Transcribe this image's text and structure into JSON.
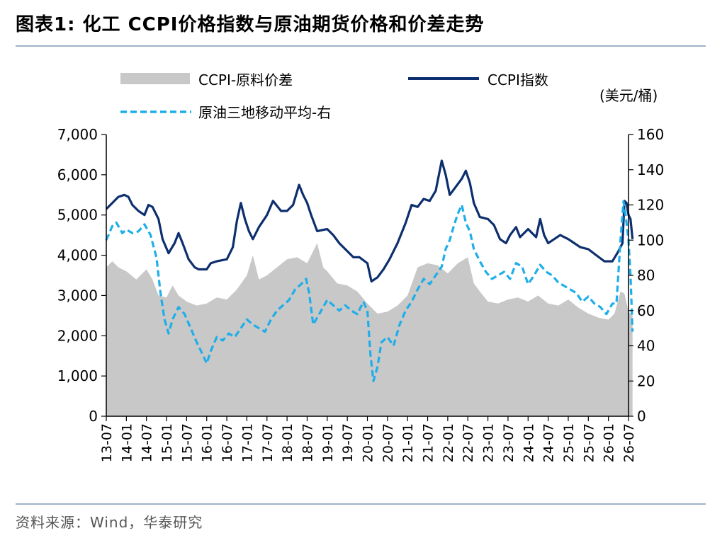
{
  "header": {
    "title": "图表1:   化工 CCPI价格指数与原油期货价格和价差走势"
  },
  "footer": {
    "source": "资料来源：Wind，华泰研究"
  },
  "colors": {
    "spread": "#c8c8c8",
    "ccpi": "#0d2f6e",
    "oil": "#1eaee9"
  },
  "chart_data": {
    "type": "line",
    "legend": {
      "spread": "CCPI-原料价差",
      "ccpi": "CCPI指数",
      "oil": "原油三地移动平均-右",
      "unit": "(美元/桶)"
    },
    "x_ticks": [
      "13-07",
      "14-01",
      "14-07",
      "15-01",
      "15-07",
      "16-01",
      "16-07",
      "17-01",
      "17-07",
      "18-01",
      "18-07",
      "19-01",
      "19-07",
      "20-01",
      "20-07",
      "21-01",
      "21-07",
      "22-01",
      "22-07",
      "23-01",
      "23-07",
      "24-01",
      "24-07",
      "25-01",
      "25-07",
      "26-01",
      "26-07"
    ],
    "y_left": {
      "ticks": [
        "0",
        "1,000",
        "2,000",
        "3,000",
        "4,000",
        "5,000",
        "6,000",
        "7,000"
      ],
      "min": 0,
      "max": 7000
    },
    "y_right": {
      "ticks": [
        "0",
        "20",
        "40",
        "60",
        "80",
        "100",
        "120",
        "140",
        "160"
      ],
      "min": 0,
      "max": 160
    },
    "series": [
      {
        "key": "spread",
        "name": "CCPI-原料价差",
        "kind": "area",
        "axis": "left",
        "points": [
          [
            0,
            3700
          ],
          [
            0.3,
            3850
          ],
          [
            0.6,
            3700
          ],
          [
            1,
            3600
          ],
          [
            1.5,
            3400
          ],
          [
            2,
            3650
          ],
          [
            2.3,
            3400
          ],
          [
            2.6,
            3000
          ],
          [
            3,
            2950
          ],
          [
            3.3,
            3250
          ],
          [
            3.6,
            3000
          ],
          [
            4,
            2850
          ],
          [
            4.5,
            2750
          ],
          [
            5,
            2800
          ],
          [
            5.5,
            2950
          ],
          [
            6,
            2900
          ],
          [
            6.5,
            3150
          ],
          [
            7,
            3500
          ],
          [
            7.3,
            4000
          ],
          [
            7.6,
            3400
          ],
          [
            8,
            3500
          ],
          [
            8.5,
            3700
          ],
          [
            9,
            3900
          ],
          [
            9.5,
            3950
          ],
          [
            10,
            3800
          ],
          [
            10.5,
            4300
          ],
          [
            10.8,
            3700
          ],
          [
            11,
            3600
          ],
          [
            11.5,
            3300
          ],
          [
            12,
            3250
          ],
          [
            12.5,
            3100
          ],
          [
            13,
            2800
          ],
          [
            13.5,
            2550
          ],
          [
            14,
            2600
          ],
          [
            14.5,
            2750
          ],
          [
            15,
            3000
          ],
          [
            15.5,
            3700
          ],
          [
            16,
            3800
          ],
          [
            16.5,
            3750
          ],
          [
            17,
            3550
          ],
          [
            17.5,
            3800
          ],
          [
            18,
            3950
          ],
          [
            18.3,
            3300
          ],
          [
            18.6,
            3100
          ],
          [
            19,
            2850
          ],
          [
            19.5,
            2800
          ],
          [
            20,
            2900
          ],
          [
            20.5,
            2950
          ],
          [
            21,
            2850
          ],
          [
            21.5,
            3000
          ],
          [
            22,
            2800
          ],
          [
            22.5,
            2750
          ],
          [
            23,
            2900
          ],
          [
            23.5,
            2700
          ],
          [
            24,
            2550
          ],
          [
            24.5,
            2450
          ],
          [
            25,
            2400
          ],
          [
            25.3,
            2550
          ],
          [
            25.6,
            3100
          ],
          [
            25.8,
            3050
          ],
          [
            26,
            2600
          ],
          [
            26.2,
            2500
          ]
        ]
      },
      {
        "key": "ccpi",
        "name": "CCPI指数",
        "kind": "line",
        "axis": "left",
        "points": [
          [
            0,
            5150
          ],
          [
            0.3,
            5300
          ],
          [
            0.6,
            5450
          ],
          [
            0.9,
            5500
          ],
          [
            1.1,
            5450
          ],
          [
            1.3,
            5250
          ],
          [
            1.6,
            5100
          ],
          [
            1.9,
            5000
          ],
          [
            2.1,
            5250
          ],
          [
            2.3,
            5200
          ],
          [
            2.6,
            4900
          ],
          [
            2.8,
            4400
          ],
          [
            3.1,
            4050
          ],
          [
            3.4,
            4300
          ],
          [
            3.6,
            4550
          ],
          [
            3.8,
            4300
          ],
          [
            4.1,
            3900
          ],
          [
            4.4,
            3700
          ],
          [
            4.6,
            3650
          ],
          [
            5,
            3650
          ],
          [
            5.2,
            3800
          ],
          [
            5.5,
            3850
          ],
          [
            6,
            3900
          ],
          [
            6.3,
            4200
          ],
          [
            6.5,
            4850
          ],
          [
            6.7,
            5300
          ],
          [
            6.9,
            4900
          ],
          [
            7.1,
            4600
          ],
          [
            7.3,
            4400
          ],
          [
            7.6,
            4700
          ],
          [
            8,
            5000
          ],
          [
            8.3,
            5350
          ],
          [
            8.7,
            5100
          ],
          [
            9,
            5100
          ],
          [
            9.3,
            5250
          ],
          [
            9.6,
            5750
          ],
          [
            9.8,
            5500
          ],
          [
            10,
            5300
          ],
          [
            10.2,
            5000
          ],
          [
            10.5,
            4600
          ],
          [
            11,
            4650
          ],
          [
            11.3,
            4500
          ],
          [
            11.6,
            4300
          ],
          [
            12,
            4100
          ],
          [
            12.3,
            3950
          ],
          [
            12.6,
            3950
          ],
          [
            13,
            3800
          ],
          [
            13.2,
            3350
          ],
          [
            13.5,
            3450
          ],
          [
            13.8,
            3650
          ],
          [
            14.1,
            3900
          ],
          [
            14.5,
            4300
          ],
          [
            14.9,
            4800
          ],
          [
            15.2,
            5250
          ],
          [
            15.5,
            5200
          ],
          [
            15.8,
            5400
          ],
          [
            16.1,
            5350
          ],
          [
            16.4,
            5600
          ],
          [
            16.7,
            6350
          ],
          [
            16.9,
            6000
          ],
          [
            17.1,
            5500
          ],
          [
            17.4,
            5700
          ],
          [
            17.7,
            5900
          ],
          [
            17.9,
            6100
          ],
          [
            18.1,
            5800
          ],
          [
            18.3,
            5300
          ],
          [
            18.6,
            4950
          ],
          [
            19,
            4900
          ],
          [
            19.3,
            4750
          ],
          [
            19.6,
            4400
          ],
          [
            19.9,
            4300
          ],
          [
            20.1,
            4500
          ],
          [
            20.4,
            4700
          ],
          [
            20.6,
            4450
          ],
          [
            21,
            4650
          ],
          [
            21.4,
            4450
          ],
          [
            21.6,
            4900
          ],
          [
            21.8,
            4500
          ],
          [
            22,
            4300
          ],
          [
            22.3,
            4400
          ],
          [
            22.6,
            4500
          ],
          [
            23,
            4400
          ],
          [
            23.3,
            4300
          ],
          [
            23.6,
            4200
          ],
          [
            24,
            4150
          ],
          [
            24.4,
            4000
          ],
          [
            24.8,
            3850
          ],
          [
            25.2,
            3850
          ],
          [
            25.5,
            4100
          ],
          [
            25.7,
            4300
          ],
          [
            25.8,
            5350
          ],
          [
            25.9,
            5300
          ],
          [
            26,
            5000
          ],
          [
            26.1,
            4900
          ],
          [
            26.2,
            4400
          ]
        ]
      },
      {
        "key": "oil",
        "name": "原油三地移动平均-右",
        "kind": "dashed",
        "axis": "right",
        "points": [
          [
            0,
            100
          ],
          [
            0.3,
            108
          ],
          [
            0.5,
            110
          ],
          [
            0.8,
            104
          ],
          [
            1,
            106
          ],
          [
            1.3,
            104
          ],
          [
            1.6,
            105
          ],
          [
            1.9,
            109
          ],
          [
            2.2,
            103
          ],
          [
            2.5,
            90
          ],
          [
            2.7,
            70
          ],
          [
            2.9,
            55
          ],
          [
            3.1,
            47
          ],
          [
            3.3,
            55
          ],
          [
            3.6,
            62
          ],
          [
            3.9,
            58
          ],
          [
            4.2,
            50
          ],
          [
            4.5,
            42
          ],
          [
            4.8,
            35
          ],
          [
            5,
            30
          ],
          [
            5.2,
            37
          ],
          [
            5.5,
            45
          ],
          [
            5.8,
            43
          ],
          [
            6.1,
            47
          ],
          [
            6.4,
            45
          ],
          [
            6.7,
            50
          ],
          [
            7,
            55
          ],
          [
            7.3,
            52
          ],
          [
            7.6,
            50
          ],
          [
            7.9,
            48
          ],
          [
            8.2,
            55
          ],
          [
            8.5,
            60
          ],
          [
            8.8,
            63
          ],
          [
            9.1,
            66
          ],
          [
            9.4,
            72
          ],
          [
            9.7,
            75
          ],
          [
            9.95,
            78
          ],
          [
            10.1,
            70
          ],
          [
            10.3,
            52
          ],
          [
            10.5,
            56
          ],
          [
            10.8,
            62
          ],
          [
            11,
            66
          ],
          [
            11.3,
            63
          ],
          [
            11.6,
            60
          ],
          [
            11.9,
            63
          ],
          [
            12.2,
            60
          ],
          [
            12.5,
            58
          ],
          [
            12.8,
            65
          ],
          [
            13,
            60
          ],
          [
            13.15,
            35
          ],
          [
            13.3,
            20
          ],
          [
            13.5,
            28
          ],
          [
            13.7,
            42
          ],
          [
            14,
            45
          ],
          [
            14.3,
            40
          ],
          [
            14.6,
            52
          ],
          [
            14.9,
            60
          ],
          [
            15.2,
            65
          ],
          [
            15.5,
            72
          ],
          [
            15.8,
            78
          ],
          [
            16.1,
            75
          ],
          [
            16.4,
            80
          ],
          [
            16.7,
            85
          ],
          [
            16.9,
            95
          ],
          [
            17.1,
            100
          ],
          [
            17.3,
            108
          ],
          [
            17.5,
            115
          ],
          [
            17.7,
            120
          ],
          [
            17.9,
            110
          ],
          [
            18.1,
            105
          ],
          [
            18.3,
            95
          ],
          [
            18.6,
            88
          ],
          [
            18.9,
            82
          ],
          [
            19.2,
            78
          ],
          [
            19.5,
            80
          ],
          [
            19.8,
            82
          ],
          [
            20.1,
            78
          ],
          [
            20.4,
            87
          ],
          [
            20.7,
            85
          ],
          [
            21,
            75
          ],
          [
            21.3,
            80
          ],
          [
            21.6,
            86
          ],
          [
            21.9,
            82
          ],
          [
            22.2,
            80
          ],
          [
            22.5,
            76
          ],
          [
            22.8,
            74
          ],
          [
            23.1,
            72
          ],
          [
            23.4,
            70
          ],
          [
            23.7,
            65
          ],
          [
            24,
            68
          ],
          [
            24.3,
            64
          ],
          [
            24.6,
            62
          ],
          [
            24.9,
            58
          ],
          [
            25.2,
            64
          ],
          [
            25.4,
            64
          ],
          [
            25.6,
            100
          ],
          [
            25.75,
            122
          ],
          [
            25.85,
            115
          ],
          [
            26,
            100
          ],
          [
            26.1,
            80
          ],
          [
            26.2,
            48
          ]
        ]
      }
    ]
  }
}
